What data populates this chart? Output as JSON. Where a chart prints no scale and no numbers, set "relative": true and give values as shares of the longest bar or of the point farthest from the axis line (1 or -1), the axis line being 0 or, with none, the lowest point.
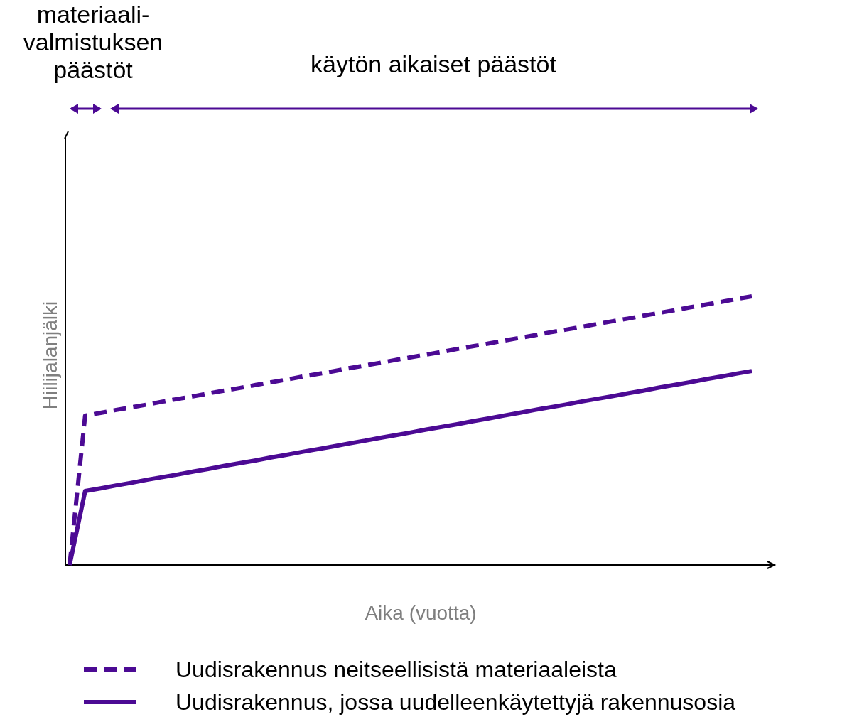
{
  "chart_data": {
    "type": "line",
    "relative": true,
    "xlabel": "Aika (vuotta)",
    "ylabel": "Hiilijalanjälki",
    "categories": [
      null,
      null,
      null,
      null,
      null,
      null,
      null,
      null,
      null,
      null,
      null,
      null,
      null,
      null,
      null,
      null,
      null,
      null,
      null,
      null,
      null,
      null,
      null,
      null,
      null,
      null,
      null,
      null,
      null,
      null,
      null,
      null,
      null,
      null,
      null,
      null,
      null,
      null,
      null,
      null,
      null,
      null,
      null,
      null,
      null
    ],
    "series": [
      {
        "name": "Uudisrakennus neitseellisistä materiaaleista",
        "color": "#4c0a94",
        "line_style": "dashed",
        "values": [
          0,
          0.556,
          0.566,
          0.577,
          0.587,
          0.597,
          0.608,
          0.618,
          0.628,
          0.639,
          0.649,
          0.659,
          0.67,
          0.68,
          0.69,
          0.701,
          0.711,
          0.721,
          0.732,
          0.742,
          0.752,
          0.763,
          0.773,
          0.783,
          0.793,
          0.804,
          0.814,
          0.824,
          0.835,
          0.845,
          0.855,
          0.866,
          0.876,
          0.886,
          0.897,
          0.907,
          0.917,
          0.928,
          0.938,
          0.948,
          0.959,
          0.969,
          0.979,
          0.99,
          1
        ]
      },
      {
        "name": "Uudisrakennus, jossa uudelleenkäytettyjä rakennusosia",
        "color": "#4c0a94",
        "line_style": "solid",
        "values": [
          0,
          0.275,
          0.285,
          0.296,
          0.306,
          0.317,
          0.327,
          0.337,
          0.348,
          0.358,
          0.369,
          0.379,
          0.389,
          0.4,
          0.41,
          0.421,
          0.431,
          0.441,
          0.452,
          0.462,
          0.473,
          0.483,
          0.493,
          0.504,
          0.514,
          0.524,
          0.535,
          0.545,
          0.556,
          0.566,
          0.577,
          0.587,
          0.597,
          0.608,
          0.618,
          0.628,
          0.639,
          0.649,
          0.66,
          0.67,
          0.68,
          0.691,
          0.701,
          0.712,
          0.722
        ]
      }
    ],
    "annotations": [
      "materiaali-valmistuksen päästöt",
      "käytön aikaiset päästöt"
    ],
    "legend": "bottom",
    "marker": "none"
  }
}
